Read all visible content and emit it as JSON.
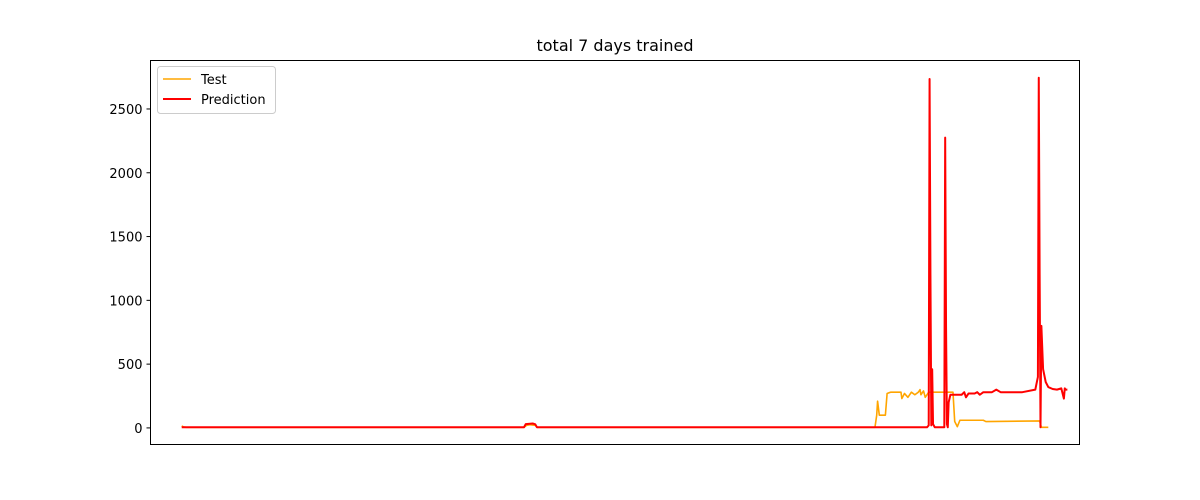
{
  "chart_data": {
    "type": "line",
    "title": "total 7 days trained",
    "xlabel": "",
    "ylabel": "",
    "xlim": [
      -36,
      1036
    ],
    "ylim": [
      -130,
      2880
    ],
    "yticks": [
      0,
      500,
      1000,
      1500,
      2000,
      2500
    ],
    "x_ticks_visible": false,
    "grid": false,
    "legend_position": "upper-left",
    "series": [
      {
        "name": "Test",
        "color": "#ffa500",
        "points": [
          [
            0,
            15
          ],
          [
            2,
            8
          ],
          [
            5,
            5
          ],
          [
            395,
            5
          ],
          [
            398,
            20
          ],
          [
            402,
            25
          ],
          [
            405,
            22
          ],
          [
            408,
            20
          ],
          [
            410,
            5
          ],
          [
            800,
            5
          ],
          [
            802,
            100
          ],
          [
            803,
            210
          ],
          [
            805,
            100
          ],
          [
            812,
            100
          ],
          [
            814,
            270
          ],
          [
            818,
            280
          ],
          [
            830,
            280
          ],
          [
            831,
            230
          ],
          [
            834,
            270
          ],
          [
            838,
            240
          ],
          [
            842,
            280
          ],
          [
            846,
            260
          ],
          [
            850,
            280
          ],
          [
            852,
            300
          ],
          [
            853,
            260
          ],
          [
            856,
            290
          ],
          [
            858,
            240
          ],
          [
            862,
            280
          ],
          [
            866,
            280
          ],
          [
            870,
            280
          ],
          [
            874,
            280
          ],
          [
            878,
            280
          ],
          [
            880,
            280
          ],
          [
            882,
            280
          ],
          [
            886,
            280
          ],
          [
            888,
            280
          ],
          [
            890,
            280
          ],
          [
            892,
            50
          ],
          [
            895,
            10
          ],
          [
            898,
            60
          ],
          [
            925,
            60
          ],
          [
            928,
            50
          ],
          [
            990,
            55
          ],
          [
            992,
            5
          ],
          [
            1000,
            5
          ]
        ]
      },
      {
        "name": "Prediction",
        "color": "#ff0000",
        "points": [
          [
            0,
            5
          ],
          [
            395,
            5
          ],
          [
            397,
            30
          ],
          [
            405,
            35
          ],
          [
            408,
            28
          ],
          [
            410,
            5
          ],
          [
            860,
            5
          ],
          [
            862,
            20
          ],
          [
            863,
            2735
          ],
          [
            864,
            1200
          ],
          [
            865,
            20
          ],
          [
            866,
            460
          ],
          [
            867,
            30
          ],
          [
            869,
            5
          ],
          [
            880,
            5
          ],
          [
            881,
            2275
          ],
          [
            882,
            800
          ],
          [
            883,
            30
          ],
          [
            884,
            5
          ],
          [
            885,
            200
          ],
          [
            887,
            260
          ],
          [
            900,
            260
          ],
          [
            903,
            280
          ],
          [
            905,
            240
          ],
          [
            908,
            270
          ],
          [
            915,
            270
          ],
          [
            918,
            280
          ],
          [
            921,
            260
          ],
          [
            925,
            280
          ],
          [
            935,
            280
          ],
          [
            940,
            300
          ],
          [
            945,
            280
          ],
          [
            970,
            280
          ],
          [
            985,
            300
          ],
          [
            988,
            400
          ],
          [
            989,
            2745
          ],
          [
            990,
            1200
          ],
          [
            991,
            5
          ],
          [
            992,
            800
          ],
          [
            994,
            460
          ],
          [
            997,
            360
          ],
          [
            1000,
            320
          ],
          [
            1005,
            305
          ],
          [
            1010,
            300
          ],
          [
            1015,
            310
          ],
          [
            1018,
            230
          ],
          [
            1019,
            310
          ],
          [
            1020,
            300
          ],
          [
            1022,
            300
          ]
        ]
      }
    ]
  }
}
